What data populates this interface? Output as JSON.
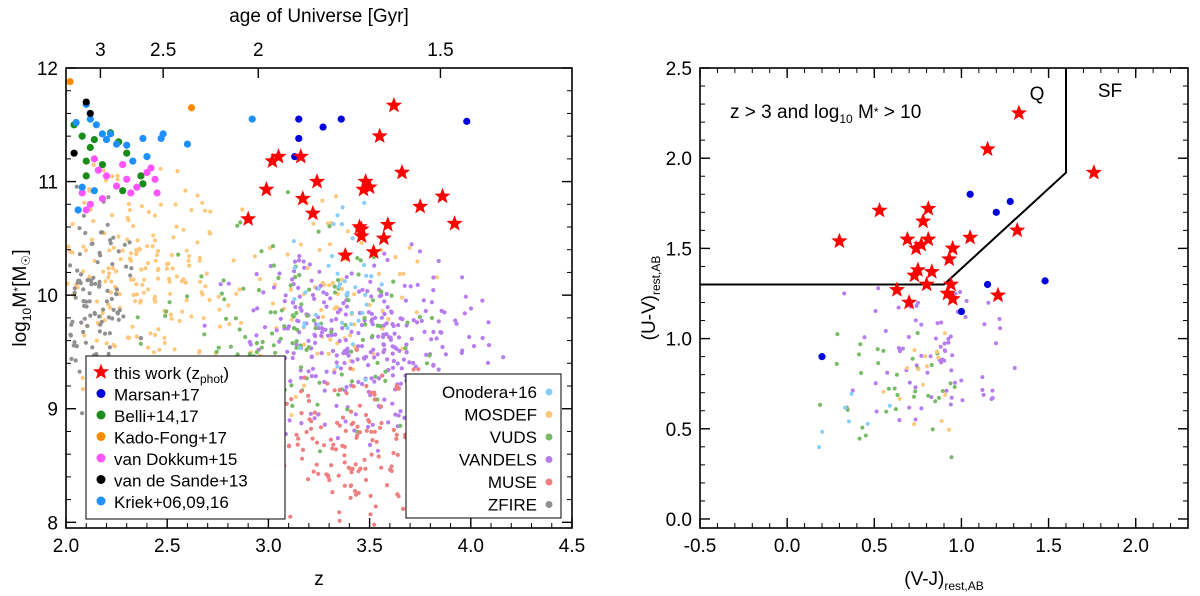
{
  "chart_data": [
    {
      "type": "scatter",
      "xlabel": "z",
      "ylabel": "log10 M* [M☉]",
      "xlim": [
        2.0,
        4.5
      ],
      "ylim": [
        7.95,
        12.0
      ],
      "x_ticks": [
        "2.0",
        "2.5",
        "3.0",
        "3.5",
        "4.0",
        "4.5"
      ],
      "y_ticks": [
        "8",
        "9",
        "10",
        "11",
        "12"
      ],
      "top_axis": {
        "label": "age of Universe [Gyr]",
        "ticks": [
          "3",
          "2.5",
          "2",
          "1.5"
        ],
        "tick_z": [
          2.17,
          2.48,
          2.95,
          3.85
        ]
      },
      "legend_left": [
        {
          "name": "this work (zphot)",
          "color": "#ff0000",
          "marker": "star"
        },
        {
          "name": "Marsan+17",
          "color": "#0000dd",
          "marker": "circle"
        },
        {
          "name": "Belli+14,17",
          "color": "#1a8c1a",
          "marker": "circle"
        },
        {
          "name": "Kado-Fong+17",
          "color": "#ff8c00",
          "marker": "circle"
        },
        {
          "name": "van Dokkum+15",
          "color": "#ff55ff",
          "marker": "circle"
        },
        {
          "name": "van de Sande+13",
          "color": "#000000",
          "marker": "circle"
        },
        {
          "name": "Kriek+06,09,16",
          "color": "#1e90ff",
          "marker": "circle"
        }
      ],
      "legend_right": [
        {
          "name": "Onodera+16",
          "color": "#87cefa"
        },
        {
          "name": "MOSDEF",
          "color": "#ffc87c"
        },
        {
          "name": "VUDS",
          "color": "#77bb66"
        },
        {
          "name": "VANDELS",
          "color": "#b77cf0"
        },
        {
          "name": "MUSE",
          "color": "#f08080"
        },
        {
          "name": "ZFIRE",
          "color": "#909090"
        }
      ],
      "stars": [
        [
          2.9,
          10.67
        ],
        [
          2.99,
          10.93
        ],
        [
          3.02,
          11.18
        ],
        [
          3.05,
          11.22
        ],
        [
          3.16,
          11.22
        ],
        [
          3.17,
          10.85
        ],
        [
          3.22,
          10.72
        ],
        [
          3.24,
          11.0
        ],
        [
          3.38,
          10.35
        ],
        [
          3.45,
          10.6
        ],
        [
          3.46,
          10.52
        ],
        [
          3.46,
          10.58
        ],
        [
          3.47,
          10.93
        ],
        [
          3.48,
          11.0
        ],
        [
          3.5,
          10.95
        ],
        [
          3.52,
          10.38
        ],
        [
          3.55,
          11.4
        ],
        [
          3.57,
          10.5
        ],
        [
          3.59,
          10.62
        ],
        [
          3.62,
          11.67
        ],
        [
          3.66,
          11.08
        ],
        [
          3.75,
          10.78
        ],
        [
          3.86,
          10.87
        ],
        [
          3.92,
          10.63
        ]
      ],
      "marsan": [
        [
          3.13,
          11.22
        ],
        [
          3.15,
          11.38
        ],
        [
          3.15,
          11.55
        ],
        [
          3.27,
          11.48
        ],
        [
          3.36,
          11.55
        ],
        [
          3.98,
          11.53
        ]
      ],
      "belli": [
        [
          2.04,
          11.5
        ],
        [
          2.08,
          11.4
        ],
        [
          2.1,
          11.18
        ],
        [
          2.12,
          11.3
        ],
        [
          2.14,
          11.37
        ],
        [
          2.1,
          11.05
        ],
        [
          2.18,
          11.15
        ],
        [
          2.22,
          11.43
        ],
        [
          2.26,
          11.35
        ],
        [
          2.3,
          11.25
        ],
        [
          2.28,
          10.92
        ],
        [
          2.37,
          11.05
        ],
        [
          2.38,
          10.98
        ]
      ],
      "kadofong": [
        [
          2.02,
          11.88
        ],
        [
          2.62,
          11.65
        ]
      ],
      "vandokkum": [
        [
          2.14,
          11.2
        ],
        [
          2.16,
          11.1
        ],
        [
          2.2,
          11.05
        ],
        [
          2.25,
          10.96
        ],
        [
          2.3,
          11.02
        ],
        [
          2.32,
          10.9
        ],
        [
          2.35,
          10.95
        ],
        [
          2.4,
          11.08
        ],
        [
          2.42,
          11.12
        ],
        [
          2.44,
          11.02
        ],
        [
          2.45,
          10.9
        ],
        [
          2.08,
          10.9
        ],
        [
          2.12,
          10.8
        ],
        [
          2.18,
          10.85
        ],
        [
          2.28,
          11.15
        ],
        [
          2.1,
          10.75
        ]
      ],
      "vandesande": [
        [
          2.04,
          11.25
        ],
        [
          2.1,
          11.7
        ],
        [
          2.12,
          11.6
        ]
      ],
      "kriek": [
        [
          2.05,
          11.52
        ],
        [
          2.06,
          10.75
        ],
        [
          2.08,
          10.95
        ],
        [
          2.1,
          11.68
        ],
        [
          2.12,
          11.55
        ],
        [
          2.15,
          11.5
        ],
        [
          2.18,
          11.42
        ],
        [
          2.2,
          11.37
        ],
        [
          2.22,
          11.42
        ],
        [
          2.25,
          11.33
        ],
        [
          2.3,
          11.32
        ],
        [
          2.33,
          11.18
        ],
        [
          2.38,
          11.38
        ],
        [
          2.4,
          11.22
        ],
        [
          2.47,
          11.38
        ],
        [
          2.48,
          11.42
        ],
        [
          2.6,
          11.33
        ],
        [
          2.92,
          11.55
        ],
        [
          2.14,
          10.92
        ]
      ]
    },
    {
      "type": "scatter",
      "title": "z > 3 and log10 M* > 10",
      "xlabel": "(V-J)rest,AB",
      "ylabel": "(U-V)rest,AB",
      "xlim": [
        -0.5,
        2.3
      ],
      "ylim": [
        -0.05,
        2.5
      ],
      "x_ticks": [
        "-0.5",
        "0.0",
        "0.5",
        "1.0",
        "1.5",
        "2.0"
      ],
      "y_ticks": [
        "0.0",
        "0.5",
        "1.0",
        "1.5",
        "2.0",
        "2.5"
      ],
      "region_labels": {
        "Q": "Q",
        "SF": "SF",
        "Q_color": "#ff8c00",
        "SF_color": "#1e90ff"
      },
      "boundary": [
        [
          -0.5,
          1.3
        ],
        [
          0.9,
          1.3
        ],
        [
          1.6,
          1.92
        ],
        [
          1.6,
          2.5
        ]
      ],
      "stars": [
        [
          0.3,
          1.54
        ],
        [
          0.53,
          1.71
        ],
        [
          0.63,
          1.27
        ],
        [
          0.69,
          1.55
        ],
        [
          0.7,
          1.2
        ],
        [
          0.73,
          1.35
        ],
        [
          0.74,
          1.5
        ],
        [
          0.75,
          1.38
        ],
        [
          0.77,
          1.52
        ],
        [
          0.78,
          1.65
        ],
        [
          0.8,
          1.3
        ],
        [
          0.81,
          1.72
        ],
        [
          0.81,
          1.55
        ],
        [
          0.83,
          1.37
        ],
        [
          0.92,
          1.25
        ],
        [
          0.93,
          1.44
        ],
        [
          0.95,
          1.5
        ],
        [
          0.94,
          1.3
        ],
        [
          0.95,
          1.22
        ],
        [
          1.05,
          1.56
        ],
        [
          1.15,
          2.05
        ],
        [
          1.21,
          1.24
        ],
        [
          1.32,
          1.6
        ],
        [
          1.33,
          2.25
        ],
        [
          1.76,
          1.92
        ]
      ],
      "marsan": [
        [
          0.2,
          0.9
        ],
        [
          1.0,
          1.15
        ],
        [
          1.05,
          1.8
        ],
        [
          1.15,
          1.3
        ],
        [
          1.2,
          1.7
        ],
        [
          1.28,
          1.76
        ],
        [
          1.48,
          1.32
        ]
      ]
    }
  ]
}
